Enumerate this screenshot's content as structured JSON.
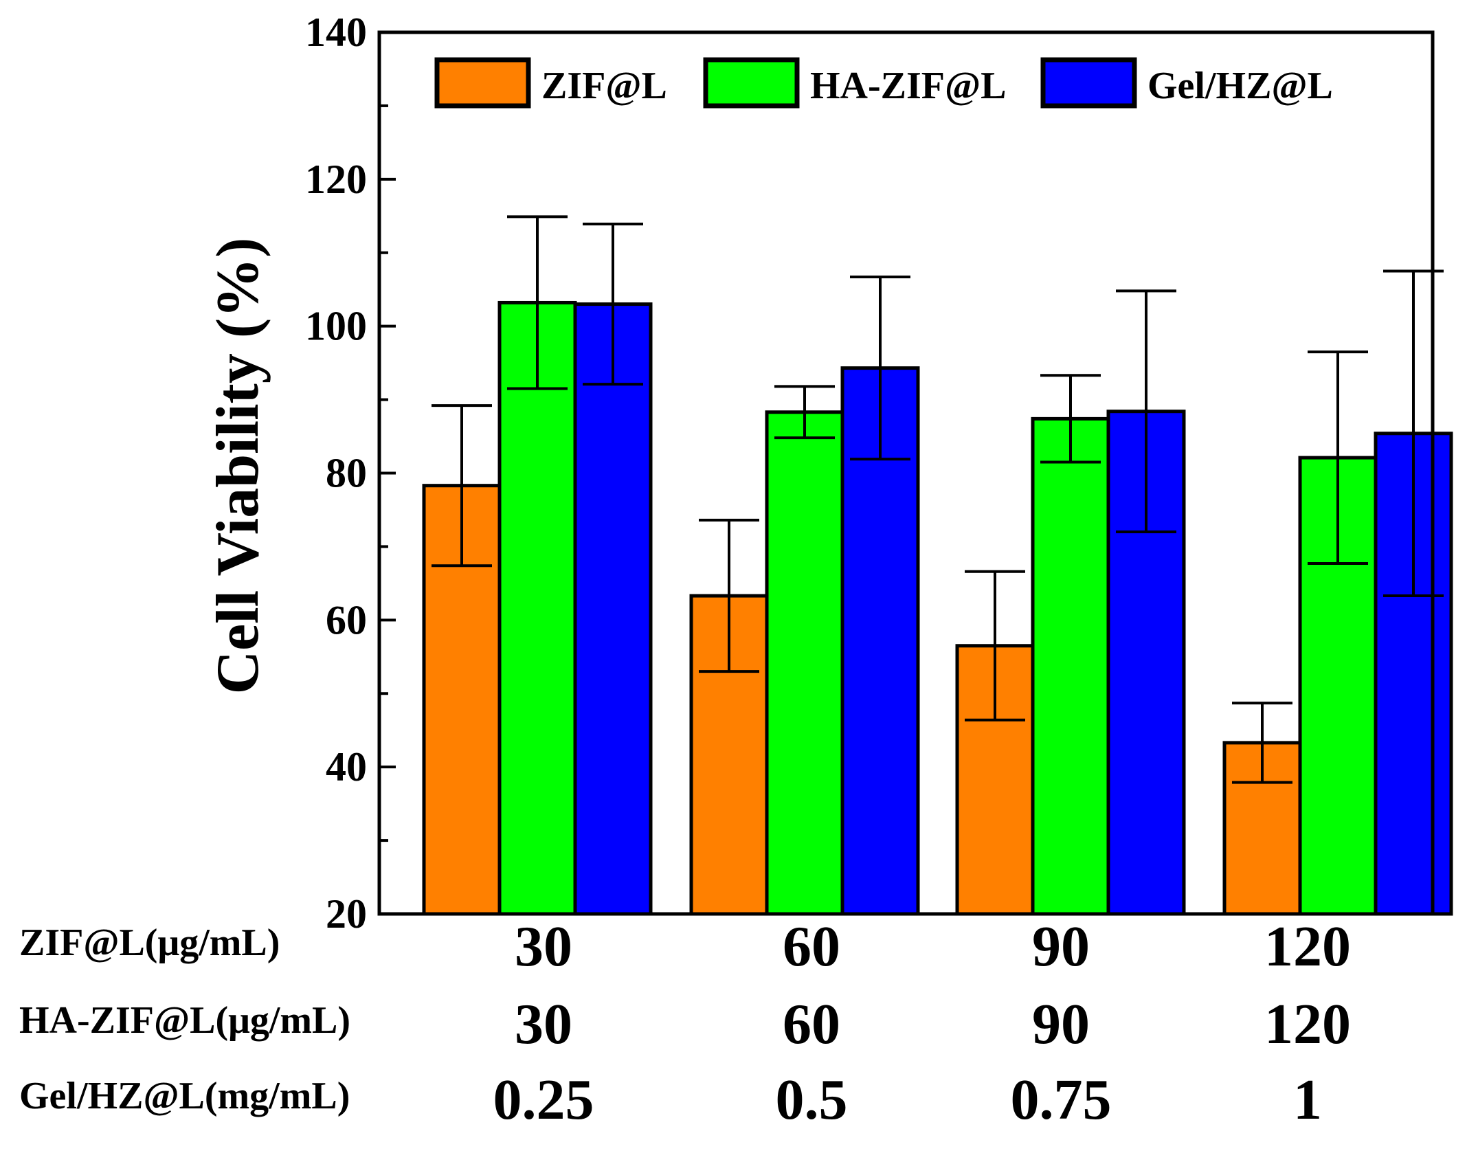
{
  "chart_data": {
    "type": "bar",
    "title": "",
    "ylabel": "Cell Viability (%)",
    "ylim": [
      20,
      140
    ],
    "yticks": [
      20,
      40,
      60,
      80,
      100,
      120,
      140
    ],
    "grid": false,
    "legend_position": "top",
    "categories": [
      "30",
      "60",
      "90",
      "120"
    ],
    "category_rows": [
      {
        "label": "ZIF@L(μg/mL)",
        "values": [
          "30",
          "60",
          "90",
          "120"
        ]
      },
      {
        "label": "HA-ZIF@L(μg/mL)",
        "values": [
          "30",
          "60",
          "90",
          "120"
        ]
      },
      {
        "label": "Gel/HZ@L(mg/mL)",
        "values": [
          "0.25",
          "0.5",
          "0.75",
          "1"
        ]
      }
    ],
    "series": [
      {
        "name": "ZIF@L",
        "color": "#FF8000",
        "values": [
          78.3,
          63.3,
          56.5,
          43.3
        ],
        "errors": [
          10.9,
          10.3,
          10.1,
          5.4
        ]
      },
      {
        "name": "HA-ZIF@L",
        "color": "#00FF00",
        "values": [
          103.2,
          88.3,
          87.4,
          82.1
        ],
        "errors": [
          11.7,
          3.5,
          5.9,
          14.4
        ]
      },
      {
        "name": "Gel/HZ@L",
        "color": "#0000FF",
        "values": [
          103.0,
          94.3,
          88.4,
          85.4
        ],
        "errors": [
          10.9,
          12.4,
          16.4,
          22.1
        ]
      }
    ]
  }
}
